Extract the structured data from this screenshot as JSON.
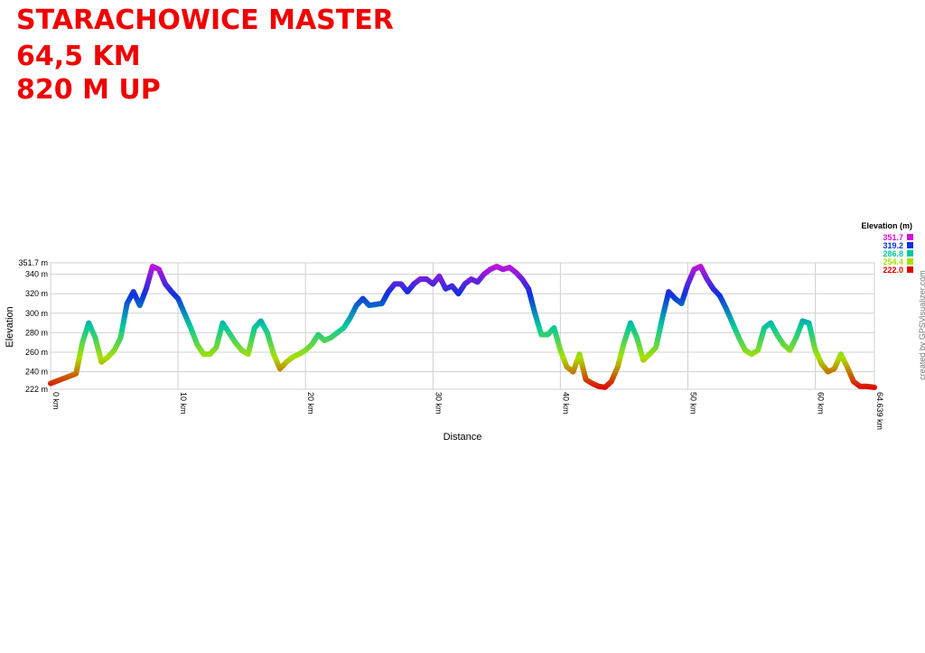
{
  "header": {
    "lines": [
      "STARACHOWICE MASTER",
      "64,5 KM",
      "820 M UP"
    ]
  },
  "chart_data": {
    "type": "line",
    "xlabel": "Distance",
    "ylabel": "Elevation",
    "credit": "created by GPSVisualizer.com",
    "grid": true,
    "xlim": [
      0,
      64.639
    ],
    "ylim": [
      222,
      351.7
    ],
    "xticks": [
      {
        "value": 0,
        "label": "0 km"
      },
      {
        "value": 10,
        "label": "10 km"
      },
      {
        "value": 20,
        "label": "20 km"
      },
      {
        "value": 30,
        "label": "30 km"
      },
      {
        "value": 40,
        "label": "40 km"
      },
      {
        "value": 50,
        "label": "50 km"
      },
      {
        "value": 60,
        "label": "60 km"
      },
      {
        "value": 64.639,
        "label": "64.639 km"
      }
    ],
    "yticks": [
      {
        "value": 222,
        "label": "222 m"
      },
      {
        "value": 240,
        "label": "240 m"
      },
      {
        "value": 260,
        "label": "260 m"
      },
      {
        "value": 280,
        "label": "280 m"
      },
      {
        "value": 300,
        "label": "300 m"
      },
      {
        "value": 320,
        "label": "320 m"
      },
      {
        "value": 340,
        "label": "340 m"
      },
      {
        "value": 351.7,
        "label": "351.7 m"
      }
    ],
    "color_scale": {
      "title": "Elevation (m)",
      "values": [
        351.7,
        319.2,
        286.8,
        254.4,
        222
      ],
      "value_labels": [
        "351.7",
        "319.2",
        "286.8",
        "254.4",
        "222.0"
      ],
      "colors": [
        "#d010d8",
        "#1030e0",
        "#00c8a0",
        "#a8e000",
        "#e00000"
      ]
    },
    "x": [
      0,
      1,
      2,
      2.5,
      3,
      3.5,
      4,
      4.5,
      5,
      5.5,
      6,
      6.5,
      7,
      7.5,
      8,
      8.5,
      9,
      9.5,
      10,
      10.5,
      11,
      11.5,
      12,
      12.5,
      13,
      13.5,
      14,
      14.5,
      15,
      15.5,
      16,
      16.5,
      17,
      17.5,
      18,
      18.5,
      19,
      19.5,
      20,
      20.5,
      21,
      21.5,
      22,
      22.5,
      23,
      23.5,
      24,
      24.5,
      25,
      26,
      26.5,
      27,
      27.5,
      28,
      28.5,
      29,
      29.5,
      30,
      30.5,
      31,
      31.5,
      32,
      32.5,
      33,
      33.5,
      34,
      34.5,
      35,
      35.5,
      36,
      36.5,
      37,
      37.5,
      38,
      38.5,
      39,
      39.5,
      40,
      40.5,
      41,
      41.5,
      42,
      42.5,
      43,
      43.5,
      44,
      44.5,
      45,
      45.5,
      46,
      46.5,
      47,
      47.5,
      48,
      48.5,
      49,
      49.5,
      50,
      50.5,
      51,
      51.5,
      52,
      52.5,
      53,
      53.5,
      54,
      54.5,
      55,
      55.5,
      56,
      56.5,
      57,
      57.5,
      58,
      58.5,
      59,
      59.5,
      60,
      60.5,
      61,
      61.5,
      62,
      62.5,
      63,
      63.5,
      64,
      64.639
    ],
    "values": [
      228,
      233,
      238,
      270,
      290,
      275,
      250,
      255,
      262,
      275,
      310,
      322,
      308,
      325,
      348,
      345,
      330,
      322,
      315,
      300,
      285,
      268,
      258,
      258,
      265,
      290,
      280,
      270,
      262,
      258,
      285,
      292,
      280,
      258,
      243,
      250,
      255,
      258,
      262,
      268,
      278,
      272,
      275,
      280,
      285,
      295,
      308,
      315,
      308,
      310,
      322,
      330,
      330,
      322,
      330,
      335,
      335,
      330,
      338,
      325,
      328,
      320,
      330,
      335,
      332,
      340,
      345,
      348,
      345,
      347,
      342,
      335,
      325,
      300,
      278,
      278,
      285,
      262,
      245,
      240,
      258,
      232,
      228,
      225,
      224,
      230,
      245,
      270,
      290,
      275,
      252,
      258,
      265,
      295,
      322,
      315,
      310,
      330,
      345,
      348,
      335,
      325,
      318,
      305,
      290,
      275,
      262,
      258,
      262,
      285,
      290,
      278,
      268,
      262,
      275,
      292,
      290,
      262,
      248,
      240,
      243,
      258,
      245,
      230,
      225,
      225,
      224
    ]
  }
}
